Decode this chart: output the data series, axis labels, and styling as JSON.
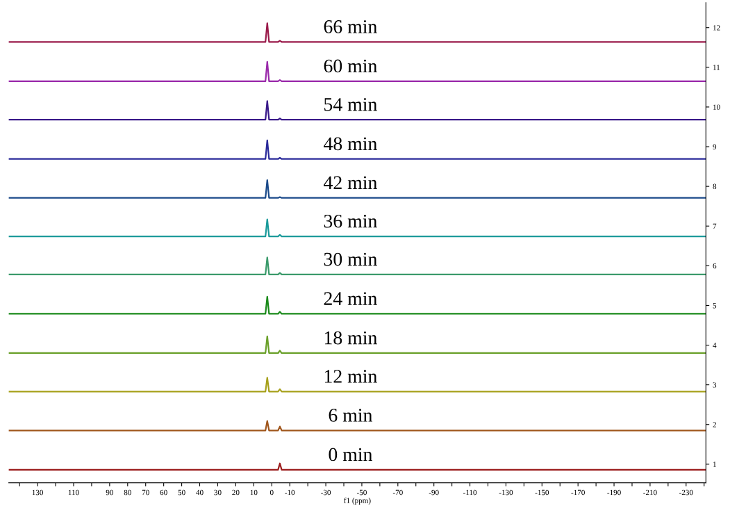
{
  "chart_data": {
    "type": "line",
    "xlabel": "f1 (ppm)",
    "legend": false,
    "grid": false,
    "x": [
      146,
      3.5,
      2.5,
      1.5,
      -3.5,
      -4.5,
      -5.5,
      -241
    ],
    "xlim": [
      146,
      -241
    ],
    "xticks": [
      {
        "value": 140,
        "label": null
      },
      130,
      {
        "value": 120,
        "label": null
      },
      110,
      {
        "value": 100,
        "label": null
      },
      90,
      80,
      70,
      60,
      50,
      40,
      30,
      20,
      10,
      0,
      -10,
      {
        "value": -20,
        "label": null
      },
      -30,
      {
        "value": -40,
        "label": null
      },
      -50,
      {
        "value": -60,
        "label": null
      },
      -70,
      {
        "value": -80,
        "label": null
      },
      -90,
      {
        "value": -100,
        "label": null
      },
      -110,
      {
        "value": -120,
        "label": null
      },
      -130,
      {
        "value": -140,
        "label": null
      },
      -150,
      {
        "value": -160,
        "label": null
      },
      -170,
      {
        "value": -180,
        "label": null
      },
      -190,
      {
        "value": -200,
        "label": null
      },
      -210,
      {
        "value": -220,
        "label": null
      },
      -230,
      {
        "value": -240,
        "label": null
      }
    ],
    "ylim": [
      0.53,
      12.63
    ],
    "yticks": [
      1,
      2,
      3,
      4,
      5,
      6,
      7,
      8,
      9,
      10,
      11,
      12
    ],
    "series": [
      {
        "name": "0 min",
        "color": "#9b1b1b",
        "values": [
          0.86,
          0.86,
          0.86,
          0.86,
          0.86,
          1.02,
          0.86,
          0.86
        ]
      },
      {
        "name": "6 min",
        "color": "#a0561c",
        "values": [
          1.85,
          1.85,
          2.09,
          1.85,
          1.85,
          1.95,
          1.85,
          1.85
        ]
      },
      {
        "name": "12 min",
        "color": "#a6a01a",
        "values": [
          2.83,
          2.83,
          3.18,
          2.83,
          2.83,
          2.89,
          2.83,
          2.83
        ]
      },
      {
        "name": "18 min",
        "color": "#6aa02a",
        "values": [
          3.8,
          3.8,
          4.22,
          3.8,
          3.8,
          3.86,
          3.8,
          3.8
        ]
      },
      {
        "name": "24 min",
        "color": "#1a8a1a",
        "values": [
          4.79,
          4.79,
          5.22,
          4.79,
          4.79,
          4.84,
          4.79,
          4.79
        ]
      },
      {
        "name": "30 min",
        "color": "#3a9a6a",
        "values": [
          5.78,
          5.78,
          6.21,
          5.78,
          5.78,
          5.82,
          5.78,
          5.78
        ]
      },
      {
        "name": "36 min",
        "color": "#1a9a9a",
        "values": [
          6.74,
          6.74,
          7.17,
          6.74,
          6.74,
          6.78,
          6.74,
          6.74
        ]
      },
      {
        "name": "42 min",
        "color": "#1a4a8a",
        "values": [
          7.71,
          7.71,
          8.16,
          7.71,
          7.71,
          7.73,
          7.71,
          7.71
        ]
      },
      {
        "name": "48 min",
        "color": "#2a2a9a",
        "values": [
          8.69,
          8.69,
          9.16,
          8.69,
          8.69,
          8.72,
          8.69,
          8.69
        ]
      },
      {
        "name": "54 min",
        "color": "#3a1a8a",
        "values": [
          9.68,
          9.68,
          10.15,
          9.68,
          9.68,
          9.71,
          9.68,
          9.68
        ]
      },
      {
        "name": "60 min",
        "color": "#9a2aaa",
        "values": [
          10.65,
          10.65,
          11.14,
          10.65,
          10.65,
          10.68,
          10.65,
          10.65
        ]
      },
      {
        "name": "66 min",
        "color": "#9a1a4a",
        "values": [
          11.64,
          11.64,
          12.11,
          11.64,
          11.64,
          11.67,
          11.64,
          11.64
        ]
      }
    ]
  }
}
